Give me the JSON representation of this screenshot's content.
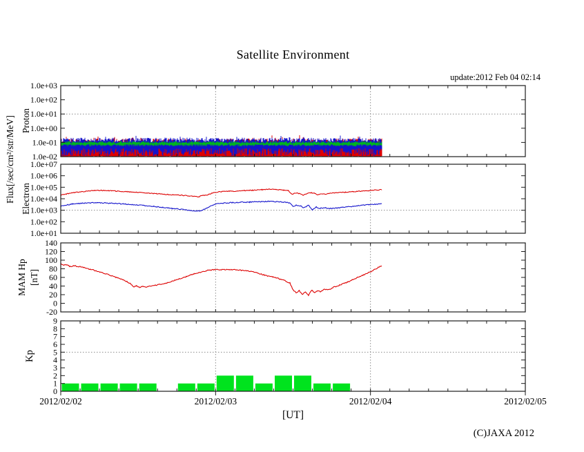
{
  "title": "Satellite Environment",
  "update_text": "update:2012 Feb 04 02:14",
  "xlabel": "[UT]",
  "copyright": "(C)JAXA 2012",
  "flux_axis_label": "Flux[/sec/cm²/str/MeV]",
  "colors": {
    "red": "#dd0000",
    "blue": "#1414cc",
    "green": "#00b41e",
    "kp_green": "#00e31e",
    "grid": "#8a8a8a",
    "frame": "#1a1a1a"
  },
  "x_axis": {
    "tick_labels": [
      "2012/02/02",
      "2012/02/03",
      "2012/02/04",
      "2012/02/05"
    ],
    "span_days": 3,
    "minor_tick_hours": 3,
    "unit": "[UT]"
  },
  "chart_data": [
    {
      "id": "proton",
      "type": "noise-band",
      "panel_label": "Proton",
      "ylabel": "Flux[/sec/cm2/str/MeV]",
      "yscale": "log10",
      "ylim": [
        -2,
        3
      ],
      "tick_values": [
        3,
        2,
        1,
        0,
        -1,
        -2
      ],
      "tick_labels": [
        "1.0e+03",
        "1.0e+02",
        "1.0e+01",
        "1.0e+00",
        "1.0e-01",
        "1.0e-02"
      ],
      "threshold": 1,
      "data_end_day": 2.073,
      "series": [
        {
          "name": "proton-red-channel",
          "color": "#dd0000",
          "base_min": -2.1,
          "min_jitter": 0.15,
          "base_max": -0.92,
          "max_jitter": 0.2,
          "spike_prob": 0.05,
          "spike_extra": 0.32
        },
        {
          "name": "proton-blue-channel",
          "color": "#1414cc",
          "base_min": -1.68,
          "min_jitter": 0.28,
          "base_max": -0.83,
          "max_jitter": 0.16,
          "spike_prob": 0.07,
          "spike_extra": 0.22
        },
        {
          "name": "proton-green-channel",
          "color": "#00b41e",
          "base_min": -1.2,
          "min_jitter": 0.07,
          "base_max": -0.99,
          "max_jitter": 0.08,
          "spike_prob": 0,
          "spike_extra": 0
        }
      ]
    },
    {
      "id": "electron",
      "type": "line",
      "panel_label": "Electron",
      "ylabel": "Flux[/sec/cm2/str/MeV]",
      "yscale": "log10",
      "ylim": [
        1,
        7
      ],
      "tick_values": [
        7,
        6,
        5,
        4,
        3,
        2,
        1
      ],
      "tick_labels": [
        "1.0e+07",
        "1.0e+06",
        "1.0e+05",
        "1.0e+04",
        "1.0e+03",
        "1.0e+02",
        "1.0e+01"
      ],
      "threshold": 3,
      "data_end_day": 2.073,
      "series": [
        {
          "name": "electron-high-energy-red",
          "color": "#dd0000",
          "jitter": 0.035,
          "points": [
            [
              0,
              4.3
            ],
            [
              0.04,
              4.42
            ],
            [
              0.08,
              4.52
            ],
            [
              0.13,
              4.6
            ],
            [
              0.18,
              4.68
            ],
            [
              0.22,
              4.72
            ],
            [
              0.28,
              4.72
            ],
            [
              0.33,
              4.69
            ],
            [
              0.38,
              4.64
            ],
            [
              0.44,
              4.6
            ],
            [
              0.5,
              4.55
            ],
            [
              0.56,
              4.49
            ],
            [
              0.62,
              4.44
            ],
            [
              0.68,
              4.38
            ],
            [
              0.73,
              4.33
            ],
            [
              0.78,
              4.3
            ],
            [
              0.82,
              4.26
            ],
            [
              0.86,
              4.2
            ],
            [
              0.89,
              4.17
            ],
            [
              0.91,
              4.26
            ],
            [
              0.94,
              4.32
            ],
            [
              0.97,
              4.45
            ],
            [
              1.0,
              4.56
            ],
            [
              1.04,
              4.62
            ],
            [
              1.09,
              4.65
            ],
            [
              1.14,
              4.67
            ],
            [
              1.19,
              4.71
            ],
            [
              1.24,
              4.74
            ],
            [
              1.3,
              4.79
            ],
            [
              1.35,
              4.83
            ],
            [
              1.39,
              4.81
            ],
            [
              1.44,
              4.74
            ],
            [
              1.47,
              4.7
            ],
            [
              1.495,
              4.38
            ],
            [
              1.51,
              4.52
            ],
            [
              1.54,
              4.44
            ],
            [
              1.565,
              4.31
            ],
            [
              1.59,
              4.46
            ],
            [
              1.62,
              4.51
            ],
            [
              1.645,
              4.46
            ],
            [
              1.66,
              4.33
            ],
            [
              1.68,
              4.45
            ],
            [
              1.71,
              4.41
            ],
            [
              1.74,
              4.49
            ],
            [
              1.79,
              4.54
            ],
            [
              1.84,
              4.57
            ],
            [
              1.89,
              4.62
            ],
            [
              1.94,
              4.67
            ],
            [
              1.99,
              4.71
            ],
            [
              2.04,
              4.76
            ],
            [
              2.073,
              4.8
            ]
          ]
        },
        {
          "name": "electron-low-energy-blue",
          "color": "#1414cc",
          "jitter": 0.04,
          "points": [
            [
              0,
              3.35
            ],
            [
              0.04,
              3.46
            ],
            [
              0.08,
              3.55
            ],
            [
              0.13,
              3.6
            ],
            [
              0.18,
              3.64
            ],
            [
              0.24,
              3.65
            ],
            [
              0.3,
              3.62
            ],
            [
              0.36,
              3.58
            ],
            [
              0.42,
              3.54
            ],
            [
              0.48,
              3.48
            ],
            [
              0.54,
              3.41
            ],
            [
              0.6,
              3.33
            ],
            [
              0.66,
              3.24
            ],
            [
              0.72,
              3.16
            ],
            [
              0.78,
              3.08
            ],
            [
              0.83,
              3.0
            ],
            [
              0.87,
              2.94
            ],
            [
              0.9,
              2.96
            ],
            [
              0.93,
              3.1
            ],
            [
              0.96,
              3.32
            ],
            [
              1.0,
              3.55
            ],
            [
              1.05,
              3.62
            ],
            [
              1.1,
              3.66
            ],
            [
              1.16,
              3.69
            ],
            [
              1.22,
              3.71
            ],
            [
              1.28,
              3.74
            ],
            [
              1.34,
              3.77
            ],
            [
              1.4,
              3.74
            ],
            [
              1.45,
              3.69
            ],
            [
              1.48,
              3.64
            ],
            [
              1.5,
              3.32
            ],
            [
              1.52,
              3.46
            ],
            [
              1.55,
              3.36
            ],
            [
              1.57,
              3.22
            ],
            [
              1.6,
              3.42
            ],
            [
              1.625,
              3.02
            ],
            [
              1.65,
              3.28
            ],
            [
              1.67,
              3.16
            ],
            [
              1.7,
              3.22
            ],
            [
              1.74,
              3.14
            ],
            [
              1.79,
              3.2
            ],
            [
              1.84,
              3.28
            ],
            [
              1.89,
              3.35
            ],
            [
              1.94,
              3.42
            ],
            [
              1.99,
              3.48
            ],
            [
              2.04,
              3.52
            ],
            [
              2.073,
              3.56
            ]
          ]
        }
      ]
    },
    {
      "id": "mam",
      "type": "line",
      "panel_label": "MAM Hp",
      "unit_label": "[nT]",
      "yscale": "linear",
      "ylim": [
        -20,
        140
      ],
      "tick_values": [
        140,
        120,
        100,
        80,
        60,
        40,
        20,
        0,
        -20
      ],
      "tick_labels": [
        "140",
        "120",
        "100",
        "80",
        "60",
        "40",
        "20",
        "0",
        "-20"
      ],
      "threshold": null,
      "data_end_day": 2.073,
      "series": [
        {
          "name": "mam-hp-red",
          "color": "#dd0000",
          "jitter": 1.1,
          "points": [
            [
              0,
              92
            ],
            [
              0.02,
              88
            ],
            [
              0.04,
              90
            ],
            [
              0.06,
              85
            ],
            [
              0.09,
              87
            ],
            [
              0.12,
              85
            ],
            [
              0.15,
              83
            ],
            [
              0.19,
              79
            ],
            [
              0.23,
              75
            ],
            [
              0.27,
              71
            ],
            [
              0.31,
              66
            ],
            [
              0.35,
              61
            ],
            [
              0.39,
              56
            ],
            [
              0.43,
              50
            ],
            [
              0.455,
              44
            ],
            [
              0.47,
              38
            ],
            [
              0.49,
              41
            ],
            [
              0.51,
              37
            ],
            [
              0.53,
              40
            ],
            [
              0.55,
              38
            ],
            [
              0.57,
              40
            ],
            [
              0.6,
              41
            ],
            [
              0.64,
              44
            ],
            [
              0.68,
              47
            ],
            [
              0.72,
              51
            ],
            [
              0.76,
              56
            ],
            [
              0.81,
              62
            ],
            [
              0.86,
              68
            ],
            [
              0.91,
              73
            ],
            [
              0.96,
              77
            ],
            [
              1.0,
              78
            ],
            [
              1.05,
              78
            ],
            [
              1.1,
              78
            ],
            [
              1.15,
              77
            ],
            [
              1.2,
              75
            ],
            [
              1.25,
              72
            ],
            [
              1.29,
              68
            ],
            [
              1.33,
              64
            ],
            [
              1.37,
              61
            ],
            [
              1.41,
              57
            ],
            [
              1.45,
              52
            ],
            [
              1.48,
              47
            ],
            [
              1.5,
              31
            ],
            [
              1.52,
              25
            ],
            [
              1.54,
              29
            ],
            [
              1.56,
              21
            ],
            [
              1.58,
              27
            ],
            [
              1.6,
              18
            ],
            [
              1.62,
              31
            ],
            [
              1.64,
              24
            ],
            [
              1.66,
              29
            ],
            [
              1.68,
              27
            ],
            [
              1.7,
              33
            ],
            [
              1.73,
              31
            ],
            [
              1.76,
              37
            ],
            [
              1.8,
              42
            ],
            [
              1.85,
              49
            ],
            [
              1.9,
              57
            ],
            [
              1.95,
              65
            ],
            [
              2.0,
              73
            ],
            [
              2.04,
              81
            ],
            [
              2.073,
              87
            ]
          ]
        }
      ]
    },
    {
      "id": "kp",
      "type": "bar",
      "panel_label": "Kp",
      "yscale": "linear",
      "ylim": [
        0,
        9
      ],
      "tick_values": [
        9,
        8,
        7,
        6,
        5,
        4,
        3,
        2,
        1,
        0
      ],
      "tick_labels": [
        "9",
        "8",
        "7",
        "6",
        "5",
        "4",
        "3",
        "2",
        "1",
        "0"
      ],
      "threshold": 5,
      "bar_hours": 3,
      "bar_color": "#00e31e",
      "values": [
        1,
        1,
        1,
        1,
        1,
        0,
        1,
        1,
        2,
        2,
        1,
        2,
        2,
        1,
        1,
        0
      ]
    }
  ]
}
